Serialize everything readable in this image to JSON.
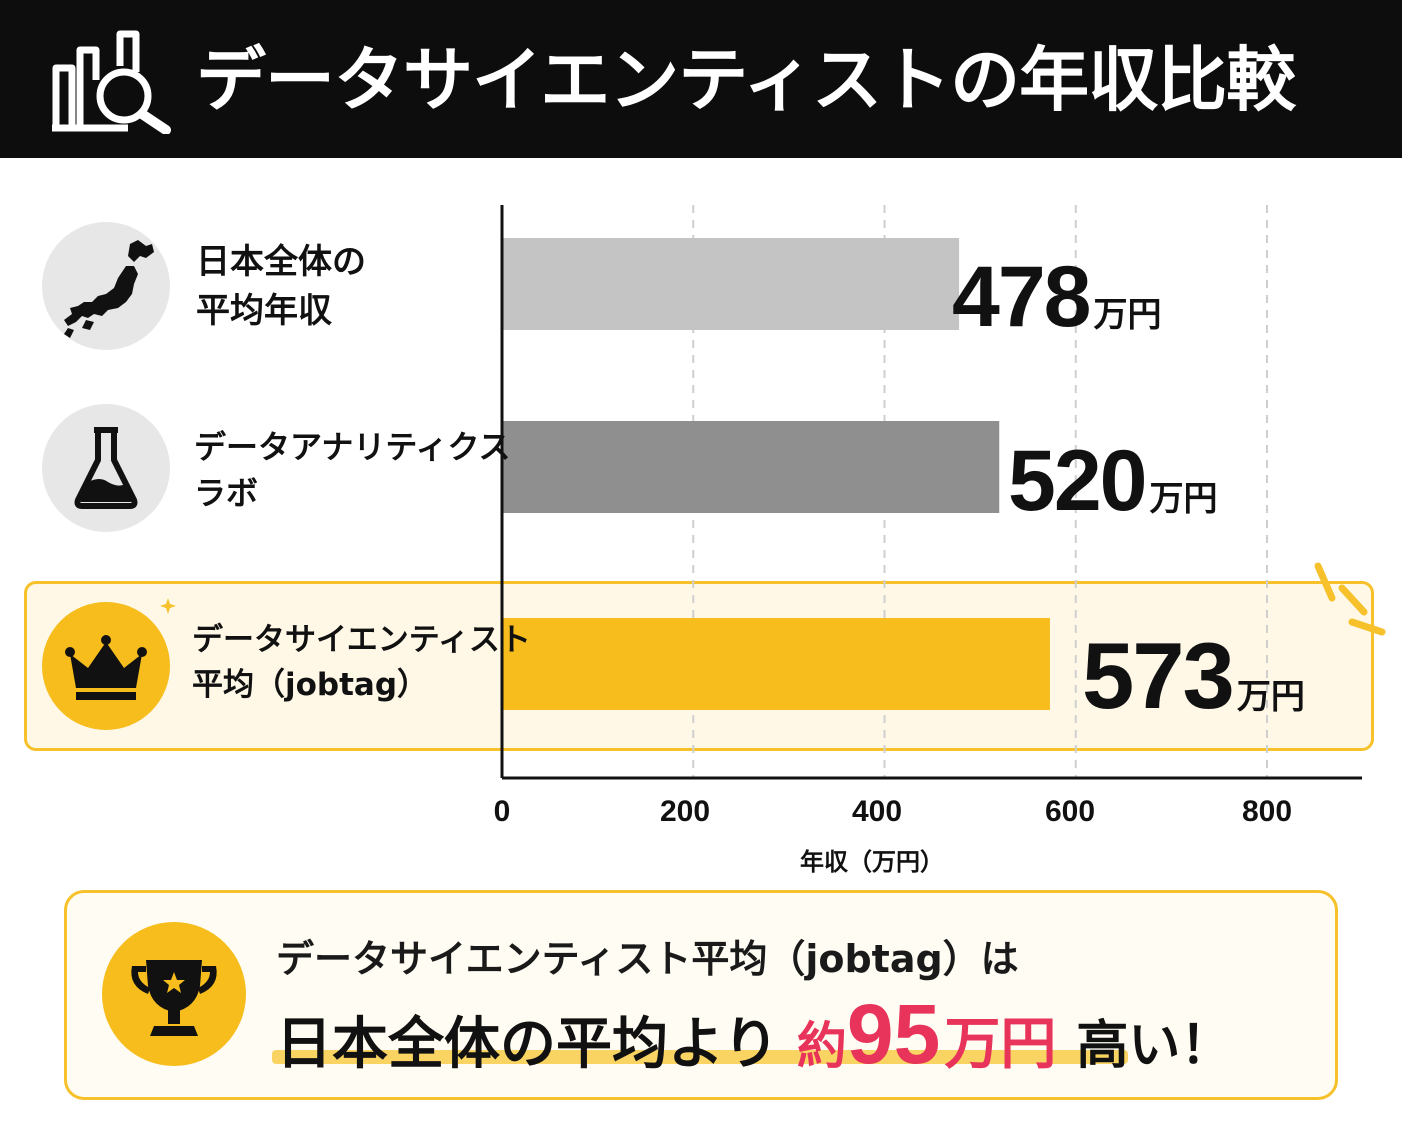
{
  "header": {
    "title": "データサイエンティストの年収比較",
    "icon": "chart-search-icon"
  },
  "chart_data": {
    "type": "bar",
    "orientation": "horizontal",
    "categories": [
      "日本全体の\n平均年収",
      "データアナリティクス\nラボ",
      "データサイエンティスト\n平均（jobtag）"
    ],
    "values": [
      478,
      520,
      573
    ],
    "value_unit": "万円",
    "bar_colors": [
      "#c4c4c4",
      "#8f8f8f",
      "#f6bd1c"
    ],
    "category_icons": [
      "japan-map-icon",
      "flask-icon",
      "crown-icon"
    ],
    "highlight_index": 2,
    "xlabel": "年収（万円）",
    "ylabel": "",
    "xlim": [
      0,
      800
    ],
    "xticks": [
      0,
      200,
      400,
      600,
      800
    ],
    "grid": "vertical-dashed"
  },
  "callout": {
    "line1": "データサイエンティスト平均（jobtag）は",
    "lead": "日本全体の平均より",
    "approx": "約",
    "diff": "95",
    "diff_unit": "万円",
    "tail": "高い！",
    "icon": "trophy-icon",
    "accent_color": "#e8345a"
  }
}
